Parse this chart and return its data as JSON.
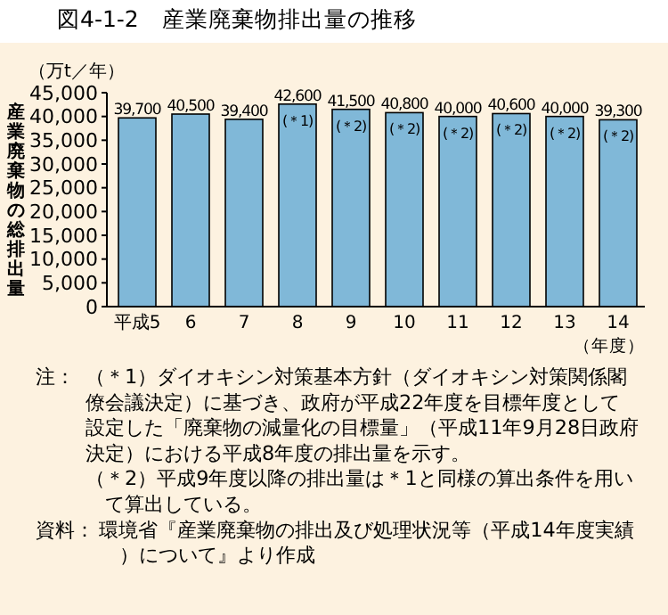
{
  "chart_data": {
    "type": "bar",
    "title": "図4-1-2　産業廃棄物排出量の推移",
    "ylabel": "産業廃棄物の総排出量",
    "subtitle": "（万t／年）",
    "xlabel": "（年度）",
    "categories": [
      "平成5",
      "6",
      "7",
      "8",
      "9",
      "10",
      "11",
      "12",
      "13",
      "14"
    ],
    "values": [
      39700,
      40500,
      39400,
      42600,
      41500,
      40800,
      40000,
      40600,
      40000,
      39300
    ],
    "value_labels": [
      "39,700",
      "40,500",
      "39,400",
      "42,600",
      "41,500",
      "40,800",
      "40,000",
      "40,600",
      "40,000",
      "39,300"
    ],
    "color": "#80b8d8",
    "ylim": [
      0,
      45000
    ],
    "yticks": [
      {
        "value": 0,
        "label": "0"
      },
      {
        "value": 5000,
        "label": "5,000"
      },
      {
        "value": 10000,
        "label": "10,000"
      },
      {
        "value": 15000,
        "label": "15,000"
      },
      {
        "value": 20000,
        "label": "20,000"
      },
      {
        "value": 25000,
        "label": "25,000"
      },
      {
        "value": 30000,
        "label": "30,000"
      },
      {
        "value": 35000,
        "label": "35,000"
      },
      {
        "value": 40000,
        "label": "40,000"
      },
      {
        "value": 45000,
        "label": "45,000"
      }
    ],
    "grid": false,
    "annotations": [
      {
        "text": "(＊1)",
        "x": "8",
        "y": 42600
      },
      {
        "text": "(＊2)",
        "x": "9",
        "y": 41500
      },
      {
        "text": "(＊2)",
        "x": "10",
        "y": 40800
      },
      {
        "text": "(＊2)",
        "x": "11",
        "y": 40000
      },
      {
        "text": "(＊2)",
        "x": "12",
        "y": 40600
      },
      {
        "text": "(＊2)",
        "x": "13",
        "y": 40000
      },
      {
        "text": "(＊2)",
        "x": "14",
        "y": 39300
      },
      "注：（＊1）ダイオキシン対策基本方針（ダイオキシン対策関係閣僚会議決定）に基づき、政府が平成22年度を目標年度として設定した「廃棄物の減量化の目標量」（平成11年9月28日政府決定）における平成8年度の排出量を示す。",
      "（＊2）平成9年度以降の排出量は＊1と同様の算出条件を用いて算出している。",
      "資料：環境省『産業廃棄物の排出及び処理状況等（平成14年度実績）について』より作成"
    ]
  }
}
